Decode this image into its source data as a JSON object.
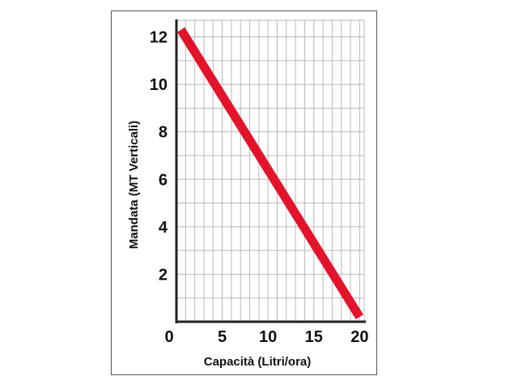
{
  "chart_data": {
    "type": "line",
    "title": "",
    "xlabel": "Capacità (Litri/ora)",
    "ylabel": "Mandata (MT Verticali)",
    "xlim": [
      0,
      20.5
    ],
    "ylim": [
      0,
      12.7
    ],
    "x_ticks": [
      {
        "value": 0,
        "label": "0"
      },
      {
        "value": 5,
        "label": "5"
      },
      {
        "value": 10,
        "label": "10"
      },
      {
        "value": 15,
        "label": "15"
      },
      {
        "value": 20,
        "label": "20"
      }
    ],
    "y_ticks": [
      {
        "value": 2,
        "label": "2"
      },
      {
        "value": 4,
        "label": "4"
      },
      {
        "value": 6,
        "label": "6"
      },
      {
        "value": 8,
        "label": "8"
      },
      {
        "value": 10,
        "label": "10"
      },
      {
        "value": 12,
        "label": "12"
      }
    ],
    "grid": true,
    "x_grid_step": 1,
    "y_grid_step": 1,
    "series": [
      {
        "color": "#e2132a",
        "x": [
          0.5,
          20
        ],
        "y": [
          12.3,
          0.2
        ]
      }
    ]
  }
}
